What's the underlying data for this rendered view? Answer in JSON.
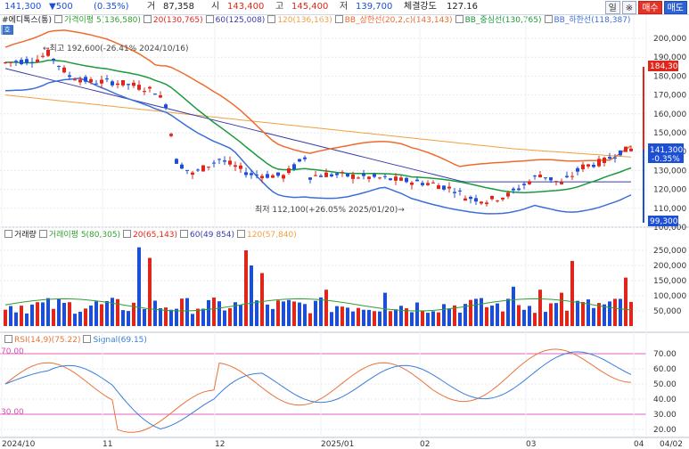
{
  "header": {
    "price": "141,300",
    "change": "▼500",
    "change_pct": "(0.35%)",
    "fields": [
      {
        "label": "거",
        "value": "87,358",
        "tone": "dark"
      },
      {
        "label": "시",
        "value": "143,400",
        "tone": "red"
      },
      {
        "label": "고",
        "value": "145,400",
        "tone": "red"
      },
      {
        "label": "저",
        "value": "139,700",
        "tone": "blue"
      },
      {
        "label": "체결강도",
        "value": "127.16",
        "tone": "dark"
      }
    ],
    "buttons": [
      "일",
      "※",
      "매수",
      "매도"
    ]
  },
  "price_panel": {
    "title": "#에디톡스(통)",
    "legend": [
      "가격이평 5(136,580)",
      "20(130,765)",
      "60(125,008)",
      "120(136,163)",
      "BB_상한선(20,2,c)(143,143)",
      "BB_중심선(130,765)",
      "BB_하한선(118,387)"
    ],
    "tag": "호",
    "ticks": [
      "200,000",
      "190,000",
      "180,000",
      "170,000",
      "160,000",
      "150,000",
      "140,000",
      "130,000",
      "120,000",
      "110,000",
      "100,000"
    ],
    "high_label": "←최고 192,600(-26.41% 2024/10/16)",
    "low_label": "최저 112,100(+26.05% 2025/01/20)→",
    "box_top": "184,300",
    "box_price": "141,300",
    "box_pct": "-0.35%",
    "box_bottom": "99,300"
  },
  "volume_panel": {
    "legend": [
      "거래량",
      "거래이평 5(80,305)",
      "20(65,143)",
      "60(49,854)",
      "120(57,840)"
    ],
    "ticks": [
      "250,000",
      "200,000",
      "150,000",
      "100,000",
      "50,000"
    ]
  },
  "rsi_panel": {
    "legend": [
      "RSI(14,9)(75.22)",
      "Signal(69.15)"
    ],
    "ticks": [
      "70.00",
      "60.00",
      "50.00",
      "40.00",
      "30.00",
      "20.00"
    ],
    "level_high": "70.00",
    "level_low": "30.00"
  },
  "x_axis": [
    "2024/10",
    "11",
    "12",
    "2025/01",
    "02",
    "03",
    "04",
    "04/02"
  ],
  "colors": {
    "up": "#e0261b",
    "down": "#1c4fd6",
    "ma5": "#2fa02f",
    "ma20": "#e0261b",
    "ma60": "#3a3aa8",
    "ma120": "#f0a040",
    "bb_upper": "#ef6b2d",
    "bb_mid": "#1b9a3a",
    "bb_lower": "#3b6fd8"
  }
}
